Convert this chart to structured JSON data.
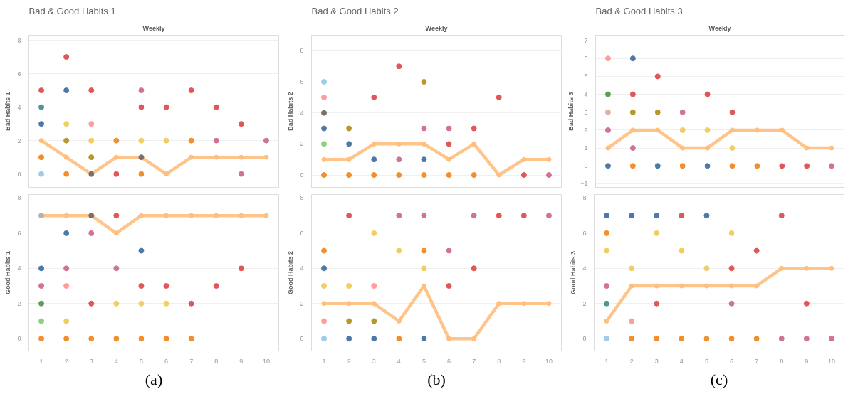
{
  "chart_data": [
    {
      "type": "scatter",
      "title": "Bad & Good Habits 1",
      "subtitle": "Weekly",
      "ylabel": "Bad Habits 1",
      "xlim": [
        0.5,
        10.5
      ],
      "ylim": [
        -0.8,
        8.3
      ],
      "yticks": [
        0,
        2,
        4,
        6,
        8
      ],
      "grid": "y",
      "marker": "circle",
      "tick_labels": "y",
      "x": [
        1,
        2,
        3,
        4,
        5,
        6,
        7,
        8,
        9,
        10
      ],
      "series": [
        {
          "type": "scatter",
          "x": [
            1,
            1,
            1,
            1,
            1,
            2,
            2,
            2,
            2,
            2,
            3,
            3,
            3,
            3,
            3,
            4,
            4,
            5,
            5,
            5,
            5,
            5,
            6,
            6,
            7,
            7,
            8,
            8,
            9,
            9,
            10
          ],
          "values": [
            5,
            4,
            3,
            1,
            0,
            7,
            5,
            3,
            2,
            0,
            5,
            3,
            2,
            1,
            0,
            2,
            0,
            5,
            4,
            2,
            1,
            0,
            4,
            2,
            5,
            2,
            4,
            2,
            3,
            0,
            2
          ],
          "colors": [
            "#e15759",
            "#499894",
            "#4e79a7",
            "#f28e2b",
            "#a0cbe8",
            "#e15759",
            "#4e79a7",
            "#f1ce63",
            "#b6992d",
            "#f28e2b",
            "#e15759",
            "#ff9d9a",
            "#f1ce63",
            "#b6992d",
            "#79706e",
            "#f28e2b",
            "#e15759",
            "#d37295",
            "#e15759",
            "#f1ce63",
            "#79706e",
            "#f28e2b",
            "#e15759",
            "#f1ce63",
            "#e15759",
            "#f28e2b",
            "#e15759",
            "#d37295",
            "#e15759",
            "#d37295",
            "#d37295"
          ]
        },
        {
          "type": "line",
          "color": "#ffbe7d",
          "values": [
            2,
            1,
            0,
            1,
            1,
            0,
            1,
            1,
            1,
            1
          ]
        }
      ]
    },
    {
      "type": "scatter",
      "title": "Bad & Good Habits 2",
      "subtitle": "Weekly",
      "ylabel": "Bad Habits 2",
      "xlim": [
        0.5,
        10.5
      ],
      "ylim": [
        -0.8,
        9
      ],
      "yticks": [
        0,
        2,
        4,
        6,
        8
      ],
      "grid": "y",
      "marker": "circle",
      "tick_labels": "y",
      "x": [
        1,
        2,
        3,
        4,
        5,
        6,
        7,
        8,
        9,
        10
      ],
      "series": [
        {
          "type": "scatter",
          "x": [
            1,
            1,
            1,
            1,
            1,
            1,
            2,
            2,
            2,
            3,
            3,
            3,
            4,
            4,
            4,
            5,
            5,
            5,
            5,
            6,
            6,
            6,
            7,
            7,
            8,
            9,
            10
          ],
          "values": [
            6,
            5,
            4,
            3,
            2,
            0,
            3,
            2,
            0,
            5,
            1,
            0,
            7,
            1,
            0,
            6,
            3,
            1,
            0,
            3,
            2,
            0,
            3,
            0,
            5,
            0,
            0
          ],
          "colors": [
            "#a0cbe8",
            "#ff9d9a",
            "#79706e",
            "#4e79a7",
            "#8cd17d",
            "#f28e2b",
            "#b6992d",
            "#4e79a7",
            "#f28e2b",
            "#e15759",
            "#4e79a7",
            "#f28e2b",
            "#e15759",
            "#d37295",
            "#f28e2b",
            "#b6992d",
            "#d37295",
            "#4e79a7",
            "#f28e2b",
            "#d37295",
            "#e15759",
            "#f28e2b",
            "#e15759",
            "#f28e2b",
            "#e15759",
            "#e15759",
            "#d37295"
          ]
        },
        {
          "type": "line",
          "color": "#ffbe7d",
          "values": [
            1,
            1,
            2,
            2,
            2,
            1,
            2,
            0,
            1,
            1
          ]
        }
      ]
    },
    {
      "type": "scatter",
      "title": "Bad & Good Habits 3",
      "subtitle": "Weekly",
      "ylabel": "Bad Habits 3",
      "xlim": [
        0.5,
        10.5
      ],
      "ylim": [
        -1.2,
        7.3
      ],
      "yticks": [
        -1,
        0,
        1,
        2,
        3,
        4,
        5,
        6,
        7
      ],
      "grid": "y",
      "marker": "circle",
      "tick_labels": "y",
      "x": [
        1,
        2,
        3,
        4,
        5,
        6,
        7,
        8,
        9,
        10
      ],
      "series": [
        {
          "type": "scatter",
          "x": [
            1,
            1,
            1,
            1,
            1,
            2,
            2,
            2,
            2,
            2,
            3,
            3,
            3,
            4,
            4,
            4,
            5,
            5,
            5,
            6,
            6,
            6,
            7,
            8,
            9,
            10
          ],
          "values": [
            6,
            4,
            3,
            2,
            0,
            6,
            4,
            3,
            1,
            0,
            5,
            3,
            0,
            3,
            2,
            0,
            4,
            2,
            0,
            3,
            1,
            0,
            0,
            0,
            0,
            0
          ],
          "colors": [
            "#ff9d9a",
            "#59a14f",
            "#d7b5a6",
            "#d37295",
            "#4e79a7",
            "#4e79a7",
            "#e15759",
            "#b6992d",
            "#d37295",
            "#f28e2b",
            "#e15759",
            "#b6992d",
            "#4e79a7",
            "#d37295",
            "#f1ce63",
            "#f28e2b",
            "#e15759",
            "#f1ce63",
            "#4e79a7",
            "#e15759",
            "#f1ce63",
            "#f28e2b",
            "#f28e2b",
            "#e15759",
            "#e15759",
            "#d37295"
          ]
        },
        {
          "type": "line",
          "color": "#ffbe7d",
          "values": [
            1,
            2,
            2,
            1,
            1,
            2,
            2,
            2,
            1,
            1
          ]
        }
      ]
    },
    {
      "type": "scatter",
      "ylabel": "Good Habits 1",
      "annotations": [
        "(a)"
      ],
      "xlim": [
        0.5,
        10.5
      ],
      "ylim": [
        -0.7,
        8.2
      ],
      "xticks": [
        1,
        2,
        3,
        4,
        5,
        6,
        7,
        8,
        9,
        10
      ],
      "yticks": [
        0,
        2,
        4,
        6,
        8
      ],
      "grid": "y",
      "marker": "circle",
      "x": [
        1,
        2,
        3,
        4,
        5,
        6,
        7,
        8,
        9,
        10
      ],
      "series": [
        {
          "type": "scatter",
          "x": [
            1,
            1,
            1,
            1,
            1,
            1,
            2,
            2,
            2,
            2,
            2,
            3,
            3,
            3,
            3,
            4,
            4,
            4,
            4,
            5,
            5,
            5,
            5,
            6,
            6,
            6,
            7,
            7,
            8,
            9
          ],
          "values": [
            7,
            4,
            3,
            2,
            1,
            0,
            6,
            4,
            3,
            1,
            0,
            7,
            6,
            2,
            0,
            7,
            4,
            2,
            0,
            5,
            3,
            2,
            0,
            3,
            2,
            0,
            2,
            0,
            3,
            4
          ],
          "colors": [
            "#bab0ac",
            "#4e79a7",
            "#d37295",
            "#59a14f",
            "#8cd17d",
            "#f28e2b",
            "#4e79a7",
            "#d37295",
            "#ff9d9a",
            "#f1ce63",
            "#f28e2b",
            "#79706e",
            "#d37295",
            "#e15759",
            "#f28e2b",
            "#e15759",
            "#d37295",
            "#f1ce63",
            "#f28e2b",
            "#4e79a7",
            "#e15759",
            "#f1ce63",
            "#f28e2b",
            "#e15759",
            "#f1ce63",
            "#f28e2b",
            "#e15759",
            "#f28e2b",
            "#e15759",
            "#e15759"
          ]
        },
        {
          "type": "line",
          "color": "#ffbe7d",
          "values": [
            7,
            7,
            7,
            6,
            7,
            7,
            7,
            7,
            7,
            7
          ]
        }
      ]
    },
    {
      "type": "scatter",
      "ylabel": "Good Habits 2",
      "annotations": [
        "(b)"
      ],
      "xlim": [
        0.5,
        10.5
      ],
      "ylim": [
        -0.7,
        8.2
      ],
      "xticks": [
        1,
        2,
        3,
        4,
        5,
        6,
        7,
        8,
        9,
        10
      ],
      "yticks": [
        0,
        2,
        4,
        6,
        8
      ],
      "grid": "y",
      "marker": "circle",
      "x": [
        1,
        2,
        3,
        4,
        5,
        6,
        7,
        8,
        9,
        10
      ],
      "series": [
        {
          "type": "scatter",
          "x": [
            1,
            1,
            1,
            1,
            1,
            2,
            2,
            2,
            2,
            3,
            3,
            3,
            3,
            4,
            4,
            4,
            5,
            5,
            5,
            5,
            6,
            6,
            7,
            7,
            8,
            9,
            10
          ],
          "values": [
            5,
            4,
            3,
            1,
            0,
            7,
            3,
            1,
            0,
            6,
            3,
            1,
            0,
            7,
            5,
            0,
            7,
            5,
            4,
            0,
            5,
            3,
            7,
            4,
            7,
            7,
            7
          ],
          "colors": [
            "#f28e2b",
            "#4e79a7",
            "#f1ce63",
            "#ff9d9a",
            "#a0cbe8",
            "#e15759",
            "#f1ce63",
            "#b6992d",
            "#4e79a7",
            "#f1ce63",
            "#ff9d9a",
            "#b6992d",
            "#4e79a7",
            "#d37295",
            "#f1ce63",
            "#f28e2b",
            "#d37295",
            "#f28e2b",
            "#f1ce63",
            "#4e79a7",
            "#d37295",
            "#e15759",
            "#d37295",
            "#e15759",
            "#e15759",
            "#e15759",
            "#d37295"
          ]
        },
        {
          "type": "line",
          "color": "#ffbe7d",
          "values": [
            2,
            2,
            2,
            1,
            3,
            0,
            0,
            2,
            2,
            2
          ]
        }
      ]
    },
    {
      "type": "scatter",
      "ylabel": "Good Habits 3",
      "annotations": [
        "(c)"
      ],
      "xlim": [
        0.5,
        10.5
      ],
      "ylim": [
        -0.7,
        8.2
      ],
      "xticks": [
        1,
        2,
        3,
        4,
        5,
        6,
        7,
        8,
        9,
        10
      ],
      "yticks": [
        0,
        2,
        4,
        6,
        8
      ],
      "grid": "y",
      "marker": "circle",
      "x": [
        1,
        2,
        3,
        4,
        5,
        6,
        7,
        8,
        9,
        10
      ],
      "series": [
        {
          "type": "scatter",
          "x": [
            1,
            1,
            1,
            1,
            1,
            1,
            2,
            2,
            2,
            2,
            3,
            3,
            3,
            3,
            4,
            4,
            4,
            5,
            5,
            5,
            6,
            6,
            6,
            6,
            7,
            7,
            8,
            8,
            9,
            9,
            10
          ],
          "values": [
            7,
            6,
            5,
            3,
            2,
            0,
            7,
            4,
            1,
            0,
            7,
            6,
            2,
            0,
            7,
            5,
            0,
            7,
            4,
            0,
            6,
            4,
            2,
            0,
            5,
            0,
            7,
            0,
            2,
            0,
            0
          ],
          "colors": [
            "#4e79a7",
            "#f28e2b",
            "#f1ce63",
            "#d37295",
            "#499894",
            "#a0cbe8",
            "#4e79a7",
            "#f1ce63",
            "#ff9d9a",
            "#f28e2b",
            "#4e79a7",
            "#f1ce63",
            "#e15759",
            "#f28e2b",
            "#e15759",
            "#f1ce63",
            "#f28e2b",
            "#4e79a7",
            "#f1ce63",
            "#f28e2b",
            "#f1ce63",
            "#e15759",
            "#d37295",
            "#f28e2b",
            "#e15759",
            "#f28e2b",
            "#e15759",
            "#d37295",
            "#e15759",
            "#d37295",
            "#d37295"
          ]
        },
        {
          "type": "line",
          "color": "#ffbe7d",
          "values": [
            1,
            3,
            3,
            3,
            3,
            3,
            3,
            4,
            4,
            4
          ]
        }
      ]
    }
  ]
}
